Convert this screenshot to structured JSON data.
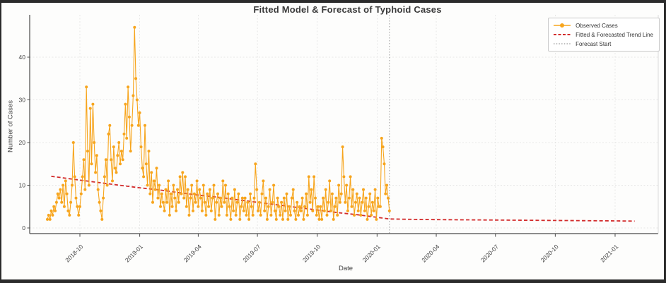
{
  "chart_data": {
    "type": "line",
    "title": "Fitted Model & Forecast of Typhoid Cases",
    "xlabel": "Date",
    "ylabel": "Number of Cases",
    "x_tick_labels": [
      "2018-10",
      "2019-01",
      "2019-04",
      "2019-07",
      "2019-10",
      "2020-01",
      "2020-04",
      "2020-07",
      "2020-10",
      "2021-01"
    ],
    "y_tick_labels": [
      "0",
      "10",
      "20",
      "30",
      "40"
    ],
    "y_ticks": [
      0,
      10,
      20,
      30,
      40
    ],
    "ylim": [
      -1.3,
      50
    ],
    "grid": true,
    "legend": {
      "position": "upper right",
      "entries": [
        {
          "label": "Observed Cases",
          "style": "orange-line-circle-marker"
        },
        {
          "label": "Fitted & Forecasted Trend Line",
          "style": "red-dashed"
        },
        {
          "label": "Forecast Start",
          "style": "gray-dotted"
        }
      ]
    },
    "colors": {
      "observed": "#F7A51D",
      "trend": "#D22B2B",
      "forecast_line": "#999999",
      "grid": "#dedede",
      "spine": "#4a4a4a",
      "frame": "#2b2b2b",
      "figure_bg": "#fdfdfc"
    },
    "forecast_start": {
      "label": "Forecast Start",
      "date": "2020-01-20"
    },
    "observed": {
      "name": "Observed Cases",
      "start_date": "2018-08-12",
      "step_days": 2,
      "values": [
        2,
        3,
        2,
        4,
        3,
        5,
        4,
        6,
        8,
        7,
        9,
        6,
        10,
        5,
        11,
        8,
        4,
        3,
        6,
        10,
        20,
        12,
        7,
        5,
        3,
        5,
        8,
        12,
        16,
        9,
        33,
        18,
        10,
        28,
        15,
        29,
        20,
        13,
        17,
        9,
        6,
        4,
        2,
        7,
        12,
        16,
        10,
        22,
        24,
        16,
        11,
        19,
        14,
        13,
        17,
        20,
        15,
        18,
        16,
        22,
        29,
        21,
        33,
        26,
        18,
        24,
        31,
        47,
        35,
        30,
        24,
        27,
        19,
        14,
        12,
        24,
        15,
        10,
        18,
        8,
        13,
        6,
        11,
        9,
        14,
        7,
        10,
        5,
        8,
        6,
        4,
        9,
        6,
        11,
        3,
        8,
        5,
        10,
        7,
        4,
        9,
        6,
        12,
        8,
        13,
        7,
        12,
        5,
        9,
        3,
        7,
        10,
        4,
        8,
        6,
        11,
        5,
        9,
        7,
        4,
        10,
        6,
        3,
        8,
        5,
        9,
        4,
        7,
        10,
        2,
        6,
        8,
        3,
        7,
        5,
        11,
        6,
        10,
        3,
        8,
        5,
        2,
        7,
        4,
        9,
        3,
        6,
        8,
        2,
        5,
        7,
        4,
        7,
        3,
        6,
        2,
        8,
        5,
        3,
        7,
        15,
        9,
        4,
        6,
        3,
        8,
        11,
        4,
        7,
        2,
        5,
        9,
        3,
        6,
        10,
        4,
        2,
        7,
        5,
        3,
        6,
        2,
        7,
        4,
        8,
        2,
        5,
        3,
        7,
        9,
        4,
        2,
        6,
        3,
        5,
        4,
        7,
        2,
        5,
        8,
        3,
        12,
        6,
        9,
        4,
        12,
        7,
        3,
        5,
        2,
        5,
        2,
        7,
        4,
        9,
        3,
        6,
        11,
        4,
        8,
        2,
        5,
        7,
        3,
        10,
        6,
        8,
        19,
        12,
        6,
        10,
        4,
        7,
        12,
        5,
        9,
        3,
        6,
        8,
        4,
        7,
        3,
        6,
        9,
        4,
        7,
        2,
        5,
        8,
        3,
        6,
        4,
        9,
        2,
        7,
        5,
        5,
        21,
        19,
        15,
        8,
        10,
        7,
        4
      ]
    },
    "trend": {
      "name": "Fitted & Forecasted Trend Line",
      "points": [
        [
          "2018-08-18",
          12.1
        ],
        [
          "2018-10-01",
          11.2
        ],
        [
          "2018-11-01",
          10.6
        ],
        [
          "2018-12-01",
          10.0
        ],
        [
          "2019-01-01",
          9.4
        ],
        [
          "2019-02-01",
          8.9
        ],
        [
          "2019-03-01",
          8.3
        ],
        [
          "2019-04-01",
          7.7
        ],
        [
          "2019-05-01",
          7.2
        ],
        [
          "2019-06-01",
          6.6
        ],
        [
          "2019-07-01",
          6.0
        ],
        [
          "2019-08-01",
          5.4
        ],
        [
          "2019-09-01",
          4.8
        ],
        [
          "2019-10-01",
          4.2
        ],
        [
          "2019-11-01",
          3.6
        ],
        [
          "2019-12-01",
          3.1
        ],
        [
          "2020-01-01",
          2.5
        ],
        [
          "2020-01-20",
          2.1
        ],
        [
          "2020-03-01",
          2.0
        ],
        [
          "2020-04-01",
          1.95
        ],
        [
          "2020-07-01",
          1.85
        ],
        [
          "2020-10-01",
          1.75
        ],
        [
          "2021-01-01",
          1.65
        ],
        [
          "2021-01-31",
          1.6
        ]
      ]
    }
  }
}
